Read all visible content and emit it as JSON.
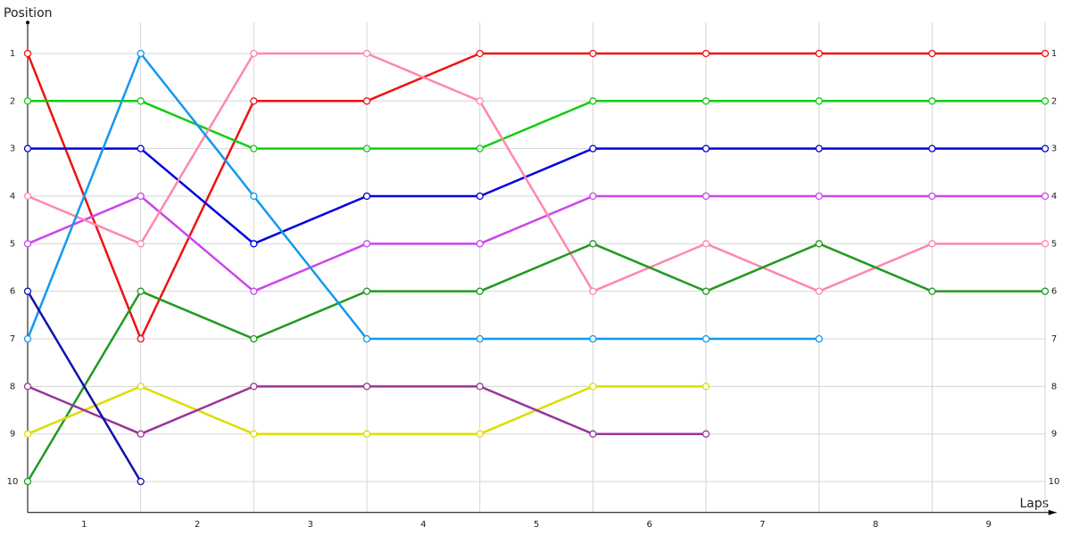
{
  "chart_data": {
    "type": "line",
    "x_label": "Laps",
    "y_label": "Position",
    "x": [
      0,
      1,
      2,
      3,
      4,
      5,
      6,
      7,
      8,
      9
    ],
    "xlim": [
      0,
      9.1
    ],
    "xticks": [
      {
        "value": 0.5,
        "label": "1"
      },
      {
        "value": 1.5,
        "label": "2"
      },
      {
        "value": 2.5,
        "label": "3"
      },
      {
        "value": 3.5,
        "label": "4"
      },
      {
        "value": 4.5,
        "label": "5"
      },
      {
        "value": 5.5,
        "label": "6"
      },
      {
        "value": 6.5,
        "label": "7"
      },
      {
        "value": 7.5,
        "label": "8"
      },
      {
        "value": 8.5,
        "label": "9"
      }
    ],
    "ylim": [
      0.35,
      10.65
    ],
    "y_inverted": true,
    "yticks": [
      1,
      2,
      3,
      4,
      5,
      6,
      7,
      8,
      9,
      10
    ],
    "grid": true,
    "markers": true,
    "series": [
      {
        "color": "#ee1111",
        "values": [
          1,
          7,
          2,
          2,
          1,
          1,
          1,
          1,
          1,
          1
        ]
      },
      {
        "color": "#11cc11",
        "values": [
          2,
          2,
          3,
          3,
          3,
          2,
          2,
          2,
          2,
          2
        ]
      },
      {
        "color": "#0000dd",
        "values": [
          3,
          3,
          5,
          4,
          4,
          3,
          3,
          3,
          3,
          3
        ]
      },
      {
        "color": "#cc44ee",
        "values": [
          5,
          4,
          6,
          5,
          5,
          4,
          4,
          4,
          4,
          4
        ]
      },
      {
        "color": "#ff88aa",
        "values": [
          4,
          5,
          1,
          1,
          2,
          6,
          5,
          6,
          5,
          5
        ]
      },
      {
        "color": "#229922",
        "values": [
          10,
          6,
          7,
          6,
          6,
          5,
          6,
          5,
          6,
          6
        ]
      },
      {
        "color": "#1199ee",
        "values": [
          7,
          1,
          4,
          7,
          7,
          7,
          7,
          7,
          null,
          null
        ]
      },
      {
        "color": "#dddd00",
        "values": [
          9,
          8,
          9,
          9,
          9,
          8,
          8,
          null,
          null,
          null
        ]
      },
      {
        "color": "#993399",
        "values": [
          8,
          9,
          8,
          8,
          8,
          9,
          9,
          null,
          null,
          null
        ]
      },
      {
        "color": "#1111aa",
        "values": [
          6,
          10,
          null,
          null,
          null,
          null,
          null,
          null,
          null,
          null
        ]
      }
    ]
  }
}
